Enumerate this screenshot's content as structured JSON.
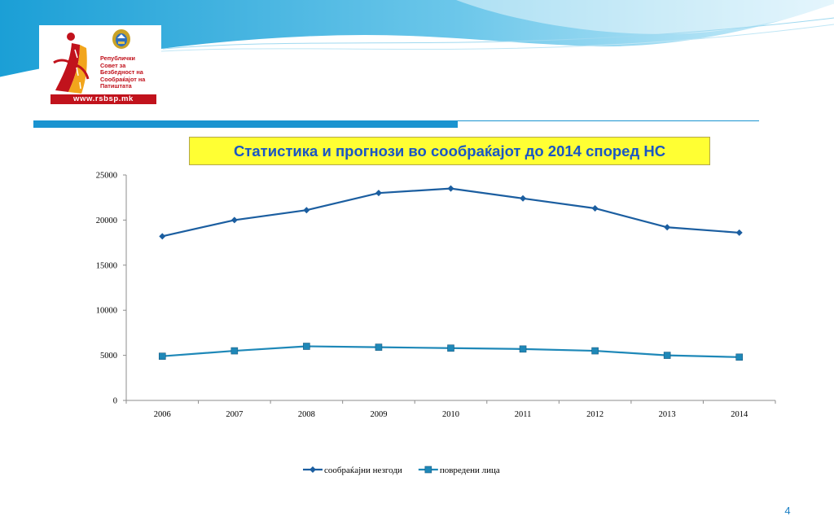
{
  "slide": {
    "title": "Статистика и прогнози во сообраќајот до 2014 според НС",
    "page_number": "4",
    "colors": {
      "accent_blue": "#1a93d0",
      "title_background": "#ffff33",
      "title_text": "#1a56c4",
      "logo_red": "#c1121c"
    }
  },
  "logo": {
    "lines": [
      "Републички",
      "Совет за",
      "Безбедност на",
      "Сообраќајот на",
      "Патиштата"
    ],
    "url": "www.rsbsp.mk",
    "icons": [
      "road-runner-logo-icon",
      "coat-of-arms-icon"
    ]
  },
  "chart_data": {
    "type": "line",
    "categories": [
      "2006",
      "2007",
      "2008",
      "2009",
      "2010",
      "2011",
      "2012",
      "2013",
      "2014"
    ],
    "series": [
      {
        "name": "сообраќајни незгоди",
        "color": "#1b5ea0",
        "marker": "diamond",
        "values": [
          18200,
          20000,
          21100,
          23000,
          23500,
          22400,
          21300,
          19200,
          18600
        ]
      },
      {
        "name": "повредени лица",
        "color": "#1e88b8",
        "marker": "square",
        "values": [
          4900,
          5500,
          6000,
          5900,
          5800,
          5700,
          5500,
          5000,
          4800
        ]
      }
    ],
    "y_ticks": [
      "0",
      "5000",
      "10000",
      "15000",
      "20000",
      "25000"
    ],
    "ylim": [
      0,
      25000
    ],
    "grid": false,
    "legend_position": "bottom"
  }
}
